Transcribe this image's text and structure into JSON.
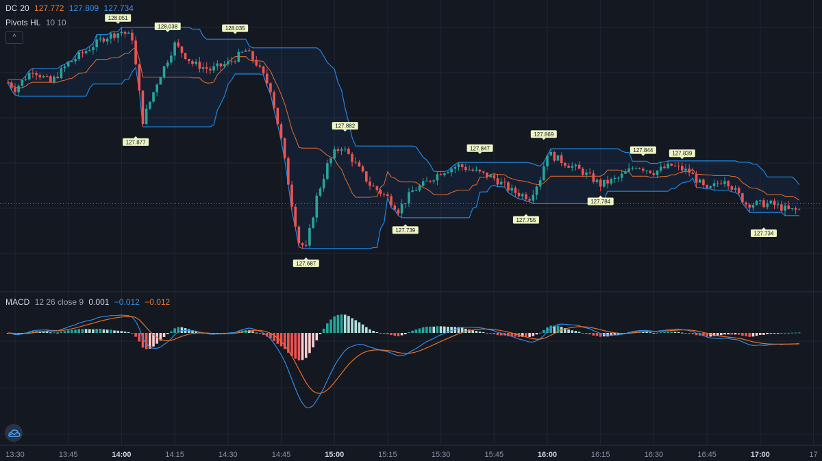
{
  "legend": {
    "dc": {
      "name": "DC",
      "period": "20",
      "v1": "127.772",
      "v2": "127.809",
      "v3": "127.734"
    },
    "pivots": {
      "name": "Pivots HL",
      "params": "10 10"
    },
    "macd": {
      "name": "MACD",
      "params": "12 26 close 9",
      "hist": "0.001",
      "macd": "−0.012",
      "signal": "−0.012"
    },
    "collapse_label": "^"
  },
  "colors": {
    "background": "#141821",
    "grid": "#202633",
    "up": "#26a69a",
    "down": "#ef5350",
    "channel": "#1e88e5",
    "basis": "#e8702a",
    "macd_line": "#2f8be6",
    "signal_line": "#e8702a",
    "hist_up_strong": "#26a69a",
    "hist_up_weak": "#b2dfdb",
    "hist_down_strong": "#ef5350",
    "hist_down_weak": "#ffcdd2"
  },
  "chart_data": {
    "type": "candlestick",
    "price_range": [
      127.66,
      128.07
    ],
    "last_price": 127.77,
    "x_ticks": [
      {
        "t": 0,
        "label": "13:30",
        "major": false
      },
      {
        "t": 15,
        "label": "13:45",
        "major": false
      },
      {
        "t": 30,
        "label": "14:00",
        "major": true
      },
      {
        "t": 45,
        "label": "14:15",
        "major": false
      },
      {
        "t": 60,
        "label": "14:30",
        "major": false
      },
      {
        "t": 75,
        "label": "14:45",
        "major": false
      },
      {
        "t": 90,
        "label": "15:00",
        "major": true
      },
      {
        "t": 105,
        "label": "15:15",
        "major": false
      },
      {
        "t": 120,
        "label": "15:30",
        "major": false
      },
      {
        "t": 135,
        "label": "15:45",
        "major": false
      },
      {
        "t": 150,
        "label": "16:00",
        "major": true
      },
      {
        "t": 165,
        "label": "16:15",
        "major": false
      },
      {
        "t": 180,
        "label": "16:30",
        "major": false
      },
      {
        "t": 195,
        "label": "16:45",
        "major": false
      },
      {
        "t": 210,
        "label": "17:00",
        "major": true
      },
      {
        "t": 225,
        "label": "17",
        "major": false
      }
    ],
    "price_knots": [
      [
        -2,
        127.96
      ],
      [
        0,
        127.95
      ],
      [
        5,
        127.98
      ],
      [
        10,
        127.96
      ],
      [
        15,
        127.99
      ],
      [
        20,
        128.01
      ],
      [
        25,
        128.03
      ],
      [
        30,
        128.04
      ],
      [
        33,
        128.03
      ],
      [
        36,
        127.9
      ],
      [
        40,
        127.96
      ],
      [
        45,
        128.02
      ],
      [
        50,
        127.99
      ],
      [
        55,
        127.98
      ],
      [
        60,
        127.99
      ],
      [
        65,
        128.01
      ],
      [
        68,
        127.99
      ],
      [
        72,
        127.95
      ],
      [
        75,
        127.87
      ],
      [
        78,
        127.77
      ],
      [
        80,
        127.71
      ],
      [
        82,
        127.7
      ],
      [
        85,
        127.78
      ],
      [
        88,
        127.83
      ],
      [
        90,
        127.85
      ],
      [
        92,
        127.86
      ],
      [
        95,
        127.84
      ],
      [
        100,
        127.8
      ],
      [
        105,
        127.78
      ],
      [
        108,
        127.76
      ],
      [
        112,
        127.79
      ],
      [
        115,
        127.8
      ],
      [
        120,
        127.82
      ],
      [
        125,
        127.83
      ],
      [
        130,
        127.82
      ],
      [
        135,
        127.81
      ],
      [
        140,
        127.79
      ],
      [
        145,
        127.78
      ],
      [
        148,
        127.81
      ],
      [
        150,
        127.85
      ],
      [
        153,
        127.84
      ],
      [
        160,
        127.82
      ],
      [
        165,
        127.8
      ],
      [
        170,
        127.81
      ],
      [
        175,
        127.83
      ],
      [
        180,
        127.82
      ],
      [
        185,
        127.83
      ],
      [
        190,
        127.82
      ],
      [
        195,
        127.79
      ],
      [
        200,
        127.81
      ],
      [
        203,
        127.79
      ],
      [
        206,
        127.77
      ],
      [
        210,
        127.77
      ],
      [
        213,
        127.77
      ],
      [
        218,
        127.76
      ],
      [
        221,
        127.76
      ]
    ],
    "donchian_period": 20,
    "pivots": [
      {
        "t": 29,
        "price": 128.051,
        "label": "128.051",
        "type": "high"
      },
      {
        "t": 34,
        "price": 127.877,
        "label": "127.877",
        "type": "low"
      },
      {
        "t": 43,
        "price": 128.038,
        "label": "128.038",
        "type": "high"
      },
      {
        "t": 62,
        "price": 128.035,
        "label": "128.035",
        "type": "high"
      },
      {
        "t": 82,
        "price": 127.687,
        "label": "127.687",
        "type": "low"
      },
      {
        "t": 93,
        "price": 127.882,
        "label": "127.882",
        "type": "high"
      },
      {
        "t": 110,
        "price": 127.739,
        "label": "127.739",
        "type": "low"
      },
      {
        "t": 131,
        "price": 127.847,
        "label": "127.847",
        "type": "high"
      },
      {
        "t": 144,
        "price": 127.755,
        "label": "127.755",
        "type": "low"
      },
      {
        "t": 149,
        "price": 127.869,
        "label": "127.869",
        "type": "high"
      },
      {
        "t": 165,
        "price": 127.784,
        "label": "127.784",
        "type": "low"
      },
      {
        "t": 177,
        "price": 127.844,
        "label": "127.844",
        "type": "high"
      },
      {
        "t": 188,
        "price": 127.839,
        "label": "127.839",
        "type": "high"
      },
      {
        "t": 211,
        "price": 127.734,
        "label": "127.734",
        "type": "low"
      }
    ]
  }
}
